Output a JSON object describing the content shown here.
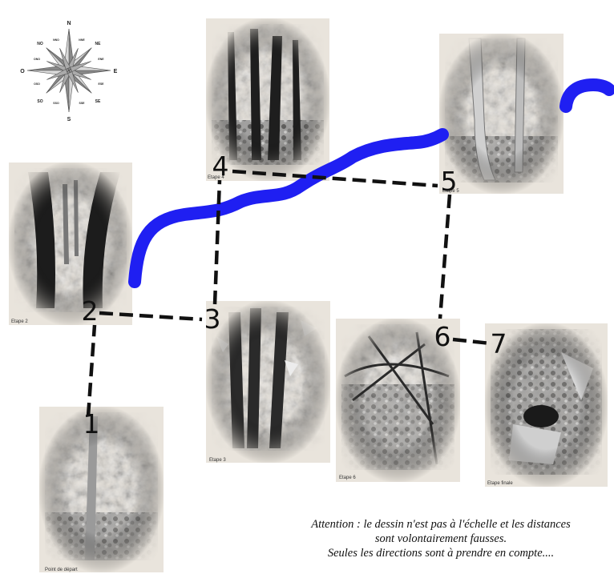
{
  "compass": {
    "cardinals": {
      "n": "N",
      "s": "S",
      "e": "E",
      "o": "O"
    },
    "intercardinals": {
      "ne": "NE",
      "se": "SE",
      "so": "SO",
      "no": "NO"
    },
    "minor": {
      "nne": "NNE",
      "ene": "ENE",
      "ese": "ESE",
      "sse": "SSE",
      "sso": "SSO",
      "oso": "OSO",
      "ono": "ONO",
      "nno": "NNO"
    }
  },
  "photos": {
    "depart": "Point de départ",
    "etape2": "Etape 2",
    "etape3": "Etape 3",
    "etape4": "Etape 4",
    "etape5": "Etape 5",
    "etape6": "Etape 6",
    "finale": "Etape finale"
  },
  "steps": {
    "s1": "1",
    "s2": "2",
    "s3": "3",
    "s4": "4",
    "s5": "5",
    "s6": "6",
    "s7": "7"
  },
  "colors": {
    "river": "#1f1ff2",
    "path": "#111111",
    "photo_bg": "#e9e4dc",
    "ink": "#2a2a2a"
  },
  "note": {
    "line1": "Attention : le dessin n'est pas à l'échelle et les distances",
    "line2": "sont volontairement fausses.",
    "line3": "Seules les directions sont à prendre en compte...."
  }
}
